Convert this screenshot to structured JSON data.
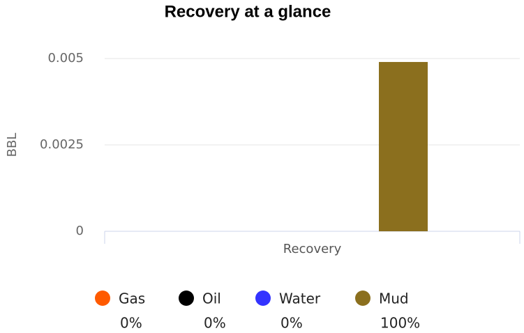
{
  "chart_data": {
    "type": "bar",
    "title": "Recovery at a glance",
    "y_label": "BBL",
    "categories": [
      "Recovery"
    ],
    "series": [
      {
        "name": "Gas",
        "color": "#ff5a00",
        "values": [
          0
        ],
        "percent": {
          "value": 0,
          "label": "0%"
        }
      },
      {
        "name": "Oil",
        "color": "#000000",
        "values": [
          0
        ],
        "percent": {
          "value": 0,
          "label": "0%"
        }
      },
      {
        "name": "Water",
        "color": "#3333ff",
        "values": [
          0
        ],
        "percent": {
          "value": 0,
          "label": "0%"
        }
      },
      {
        "name": "Mud",
        "color": "#8b6f1e",
        "values": [
          0.0049
        ],
        "percent": {
          "value": 100,
          "label": "100%"
        }
      }
    ],
    "ylim": [
      0,
      0.005
    ],
    "yticks": [
      0,
      0.0025,
      0.005
    ],
    "grid": true,
    "legend": "bottom"
  }
}
